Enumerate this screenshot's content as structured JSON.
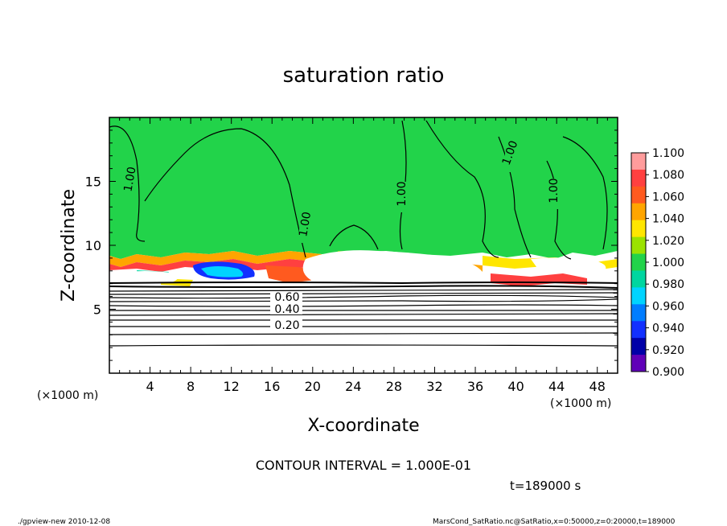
{
  "chart_data": {
    "type": "heatmap",
    "title": "saturation ratio",
    "xlabel": "X-coordinate",
    "ylabel": "Z-coordinate",
    "x_unit_left": "(×1000 m)",
    "x_unit_right": "(×1000 m)",
    "xlim": [
      0,
      50
    ],
    "ylim": [
      0,
      20
    ],
    "x_ticks": [
      "4",
      "8",
      "12",
      "16",
      "20",
      "24",
      "28",
      "32",
      "36",
      "40",
      "44",
      "48"
    ],
    "y_ticks": [
      "5",
      "10",
      "15"
    ],
    "colorbar": {
      "levels": [
        "1.100",
        "1.080",
        "1.060",
        "1.040",
        "1.020",
        "1.000",
        "0.980",
        "0.960",
        "0.940",
        "0.920",
        "0.900"
      ],
      "colors": [
        "#ff9c9c",
        "#ff4040",
        "#ff5a1f",
        "#ffa500",
        "#ffe600",
        "#9be200",
        "#22d34a",
        "#00d6a0",
        "#00d4ff",
        "#007dff",
        "#1230ff",
        "#0000a8",
        "#6000b8"
      ]
    },
    "contour_labels": [
      "1.00",
      "1.00",
      "1.00",
      "1.00",
      "1.00",
      "0.60",
      "0.40",
      "0.20"
    ],
    "contour_interval_text": "CONTOUR INTERVAL = 1.000E-01",
    "time_text": "t=189000 s",
    "footer_left": "./gpview-new   2010-12-08",
    "footer_right": "MarsCond_SatRatio.nc@SatRatio,x=0:50000,z=0:20000,t=189000"
  }
}
